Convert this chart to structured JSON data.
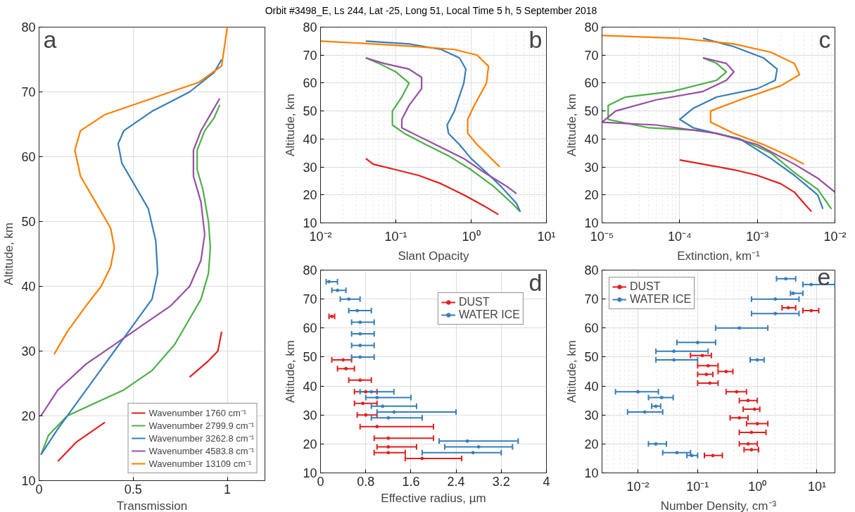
{
  "chart_data": [
    {
      "type": "line",
      "xlabel": "Transmission",
      "ylabel": "Altitude, km",
      "annotations": [
        "a"
      ],
      "xlim": [
        0,
        1.2
      ],
      "ylim": [
        10,
        80
      ],
      "xticks": [
        0,
        0.5,
        1
      ],
      "yticks": [
        10,
        20,
        30,
        40,
        50,
        60,
        70,
        80
      ],
      "grid": true,
      "legend": "bottom right",
      "marker": "none",
      "line_style": "solid",
      "series": [
        {
          "name": "Wavenumber 1760 cm⁻¹",
          "color": "#e02020",
          "x": [
            0.1,
            0.2,
            0.35,
            0.5,
            0.65,
            0.8,
            0.9,
            0.95,
            0.97
          ],
          "values": [
            13,
            16,
            19,
            null,
            null,
            26,
            28.5,
            30,
            33
          ]
        },
        {
          "name": "Wavenumber 2799.9 cm⁻¹",
          "color": "#4daf4a",
          "x": [
            0.01,
            0.05,
            0.15,
            0.3,
            0.45,
            0.6,
            0.72,
            0.8,
            0.86,
            0.9,
            0.91,
            0.9,
            0.87,
            0.84,
            0.84,
            0.88,
            0.93,
            0.96
          ],
          "values": [
            14,
            17,
            20,
            22,
            24,
            27,
            31,
            35,
            38,
            42,
            46,
            50,
            55,
            58,
            61,
            64,
            66,
            68
          ]
        },
        {
          "name": "Wavenumber 3262.8 cm⁻¹",
          "color": "#377eb8",
          "x": [
            0.01,
            0.1,
            0.2,
            0.3,
            0.4,
            0.5,
            0.6,
            0.63,
            0.62,
            0.58,
            0.5,
            0.44,
            0.42,
            0.45,
            0.6,
            0.8,
            0.93,
            0.97
          ],
          "values": [
            14,
            18,
            22,
            26,
            30,
            34,
            38,
            42,
            47,
            52,
            56,
            59,
            62,
            64,
            67,
            70,
            73,
            75
          ]
        },
        {
          "name": "Wavenumber 4583.8 cm⁻¹",
          "color": "#984ea3",
          "x": [
            0.01,
            0.1,
            0.25,
            0.4,
            0.55,
            0.7,
            0.8,
            0.86,
            0.88,
            0.86,
            0.82,
            0.82,
            0.86,
            0.92,
            0.96
          ],
          "values": [
            20,
            24,
            28,
            31,
            34,
            37,
            40,
            44,
            48,
            53,
            57,
            61,
            64,
            67,
            69
          ]
        },
        {
          "name": "Wavenumber 13109 cm⁻¹",
          "color": "#ff7f00",
          "x": [
            0.08,
            0.15,
            0.25,
            0.33,
            0.38,
            0.4,
            0.38,
            0.3,
            0.22,
            0.19,
            0.22,
            0.35,
            0.6,
            0.85,
            0.97,
            1.0
          ],
          "values": [
            29.5,
            33,
            37,
            40,
            43,
            46,
            49,
            53,
            57,
            61,
            64,
            66.5,
            69,
            71.5,
            74,
            80
          ]
        }
      ]
    },
    {
      "type": "line",
      "title": "Orbit #3498_E, Ls 244, Lat -25, Long 51, Local Time 5 h, 5 September 2018",
      "xlabel": "Slant Opacity",
      "ylabel": "Altitude, km",
      "annotations": [
        "b"
      ],
      "log": "x",
      "xlim": [
        0.01,
        10
      ],
      "ylim": [
        10,
        80
      ],
      "xticks": [
        {
          "value": 0.01,
          "label": "10⁻²"
        },
        {
          "value": 0.1,
          "label": "10⁻¹"
        },
        {
          "value": 1,
          "label": "10⁰"
        },
        {
          "value": 10,
          "label": "10¹"
        }
      ],
      "yticks": [
        10,
        20,
        30,
        40,
        50,
        60,
        70,
        80
      ],
      "grid": true,
      "marker": "none",
      "line_style": "solid",
      "series": [
        {
          "color": "#e02020",
          "x": [
            0.04,
            0.05,
            0.1,
            0.2,
            0.4,
            0.8,
            1.5,
            2.3
          ],
          "values": [
            33,
            31,
            29,
            27,
            24,
            20,
            16,
            13
          ]
        },
        {
          "color": "#4daf4a",
          "x": [
            0.04,
            0.06,
            0.1,
            0.15,
            0.12,
            0.09,
            0.09,
            0.13,
            0.25,
            0.5,
            1,
            2,
            3.5,
            4.5
          ],
          "values": [
            69,
            67,
            64,
            60,
            55,
            50,
            45,
            42,
            38,
            34,
            29,
            23,
            17,
            14
          ]
        },
        {
          "color": "#377eb8",
          "x": [
            0.04,
            0.15,
            0.4,
            0.7,
            0.85,
            0.8,
            0.6,
            0.48,
            0.5,
            0.7,
            1,
            1.6,
            2.5,
            4,
            4.5
          ],
          "values": [
            75,
            74,
            72,
            69,
            65,
            60,
            50,
            45,
            42,
            38,
            33,
            28,
            23,
            17,
            14
          ]
        },
        {
          "color": "#984ea3",
          "x": [
            0.04,
            0.07,
            0.15,
            0.22,
            0.22,
            0.15,
            0.12,
            0.12,
            0.2,
            0.4,
            0.8,
            1.5,
            3,
            4
          ],
          "values": [
            69,
            67,
            65,
            62,
            58,
            52,
            47,
            44,
            41,
            37,
            33,
            28,
            23,
            20.5
          ]
        },
        {
          "color": "#ff7f00",
          "x": [
            0.01,
            0.05,
            0.2,
            0.6,
            1.2,
            1.7,
            1.6,
            1.1,
            0.9,
            0.9,
            1.2,
            1.7,
            2.4
          ],
          "values": [
            75,
            74,
            73,
            72,
            70,
            66,
            60,
            52,
            47,
            42,
            38,
            34,
            30
          ]
        }
      ]
    },
    {
      "type": "line",
      "xlabel": "Extinction, km⁻¹",
      "ylabel": "Altitude, km",
      "annotations": [
        "c"
      ],
      "log": "x",
      "xlim": [
        1e-05,
        0.01
      ],
      "ylim": [
        10,
        80
      ],
      "xticks": [
        {
          "value": 1e-05,
          "label": "10⁻⁵"
        },
        {
          "value": 0.0001,
          "label": "10⁻⁴"
        },
        {
          "value": 0.001,
          "label": "10⁻³"
        },
        {
          "value": 0.01,
          "label": "10⁻²"
        }
      ],
      "yticks": [
        10,
        20,
        30,
        40,
        50,
        60,
        70,
        80
      ],
      "grid": true,
      "marker": "none",
      "line_style": "solid",
      "series": [
        {
          "color": "#e02020",
          "x": [
            0.0001,
            0.0002,
            0.0005,
            0.001,
            0.002,
            0.003,
            0.004,
            0.005
          ],
          "values": [
            32.5,
            31,
            29,
            27,
            24,
            21,
            17,
            14
          ]
        },
        {
          "color": "#4daf4a",
          "x": [
            0.0002,
            0.0003,
            0.0004,
            0.0003,
            8e-05,
            2e-05,
            1.2e-05,
            1.2e-05,
            4e-05,
            0.0002,
            0.0006,
            0.0015,
            0.003,
            0.006,
            0.009
          ],
          "values": [
            69,
            67,
            64,
            61,
            57,
            55,
            52,
            47,
            44,
            43,
            40,
            35,
            28,
            22,
            15
          ]
        },
        {
          "color": "#377eb8",
          "x": [
            0.0002,
            0.0005,
            0.0012,
            0.0018,
            0.0017,
            0.001,
            0.0003,
            0.00015,
            0.0001,
            0.00015,
            0.0006,
            0.0015,
            0.003,
            0.006,
            0.007
          ],
          "values": [
            76,
            73,
            69,
            65,
            61,
            58,
            55,
            51,
            47,
            44,
            40,
            33,
            27,
            20,
            15
          ]
        },
        {
          "color": "#984ea3",
          "x": [
            0.0002,
            0.0004,
            0.0005,
            0.0004,
            0.0002,
            5e-05,
            1.5e-05,
            1e-05,
            5e-05,
            0.0003,
            0.001,
            0.003,
            0.006,
            0.01
          ],
          "values": [
            69,
            67,
            64,
            61,
            57,
            54,
            50,
            46,
            45,
            42,
            38,
            31,
            26,
            21
          ]
        },
        {
          "color": "#ff7f00",
          "x": [
            1e-05,
            0.0001,
            0.0005,
            0.0015,
            0.003,
            0.0035,
            0.002,
            0.0006,
            0.00025,
            0.00025,
            0.0005,
            0.0012,
            0.0025,
            0.004
          ],
          "values": [
            77,
            76,
            74,
            71,
            67,
            63,
            59,
            54,
            50,
            46,
            42,
            38,
            34,
            31
          ]
        }
      ]
    },
    {
      "type": "scatter",
      "xlabel": "Effective radius, µm",
      "ylabel": "Altitude, km",
      "annotations": [
        "d"
      ],
      "xlim": [
        0,
        4
      ],
      "ylim": [
        10,
        80
      ],
      "xticks": [
        0,
        0.8,
        1.6,
        2.4,
        3.2,
        4
      ],
      "yticks": [
        10,
        20,
        30,
        40,
        50,
        60,
        70,
        80
      ],
      "grid": true,
      "legend": "top right",
      "marker": "circle",
      "series": [
        {
          "name": "DUST",
          "color": "#e02020",
          "x": [
            0.2,
            0.4,
            0.45,
            0.7,
            0.8,
            0.75,
            0.8,
            1.0,
            1.2,
            1.2,
            1.2,
            1.8
          ],
          "values": [
            64,
            49,
            46,
            42,
            38,
            34,
            30,
            26,
            22,
            19,
            17,
            15
          ],
          "xerrors": [
            [
              0.15,
              0.25
            ],
            [
              0.2,
              0.55
            ],
            [
              0.3,
              0.6
            ],
            [
              0.5,
              0.9
            ],
            [
              0.6,
              1.0
            ],
            [
              0.6,
              1.0
            ],
            [
              0.65,
              1.0
            ],
            [
              0.7,
              2.0
            ],
            [
              0.95,
              2.0
            ],
            [
              1.0,
              1.7
            ],
            [
              0.95,
              1.5
            ],
            [
              1.5,
              2.5
            ]
          ]
        },
        {
          "name": "WATER ICE",
          "color": "#377eb8",
          "x": [
            0.15,
            0.3,
            0.5,
            0.65,
            0.7,
            0.7,
            0.7,
            0.7,
            0.9,
            1.0,
            1.1,
            1.3,
            1.2,
            2.6,
            2.8,
            2.7
          ],
          "values": [
            76,
            73,
            70,
            66,
            62,
            58,
            54,
            50,
            38,
            36,
            33,
            31,
            29,
            21,
            19,
            17
          ],
          "xerrors": [
            [
              0.1,
              0.3
            ],
            [
              0.2,
              0.45
            ],
            [
              0.35,
              0.7
            ],
            [
              0.5,
              0.9
            ],
            [
              0.55,
              0.95
            ],
            [
              0.55,
              0.95
            ],
            [
              0.55,
              0.95
            ],
            [
              0.55,
              0.95
            ],
            [
              0.7,
              1.3
            ],
            [
              0.8,
              1.6
            ],
            [
              0.9,
              1.7
            ],
            [
              1.0,
              2.4
            ],
            [
              0.9,
              1.8
            ],
            [
              2.1,
              3.5
            ],
            [
              2.2,
              3.4
            ],
            [
              1.8,
              3.2
            ]
          ]
        }
      ]
    },
    {
      "type": "scatter",
      "xlabel": "Number Density, cm⁻³",
      "ylabel": "Altitude, km",
      "annotations": [
        "e"
      ],
      "log": "x",
      "xlim": [
        0.0025,
        20
      ],
      "ylim": [
        10,
        80
      ],
      "xticks": [
        {
          "value": 0.01,
          "label": "10⁻²"
        },
        {
          "value": 0.1,
          "label": "10⁻¹"
        },
        {
          "value": 1,
          "label": "10⁰"
        },
        {
          "value": 10,
          "label": "10¹"
        }
      ],
      "yticks": [
        10,
        20,
        30,
        40,
        50,
        60,
        70,
        80
      ],
      "grid": true,
      "legend": "top left",
      "marker": "circle",
      "series": [
        {
          "name": "DUST",
          "color": "#e02020",
          "x": [
            8,
            3.3,
            0.12,
            0.15,
            0.3,
            0.14,
            0.16,
            0.45,
            0.7,
            0.9,
            0.5,
            1,
            0.8,
            0.7,
            0.8,
            0.18
          ],
          "values": [
            66,
            67,
            50.5,
            47,
            45,
            44,
            41,
            38,
            35,
            32,
            29,
            27,
            24,
            20,
            18,
            16
          ],
          "xerrors": [
            [
              5.8,
              10.7
            ],
            [
              2.6,
              4.4
            ],
            [
              0.076,
              0.17
            ],
            [
              0.1,
              0.22
            ],
            [
              0.22,
              0.39
            ],
            [
              0.1,
              0.18
            ],
            [
              0.1,
              0.22
            ],
            [
              0.3,
              0.66
            ],
            [
              0.5,
              1
            ],
            [
              0.58,
              1.1
            ],
            [
              0.35,
              0.7
            ],
            [
              0.66,
              1.5
            ],
            [
              0.5,
              1.4
            ],
            [
              0.5,
              1
            ],
            [
              0.6,
              1.05
            ],
            [
              0.13,
              0.26
            ]
          ]
        },
        {
          "name": "WATER ICE",
          "color": "#377eb8",
          "x": [
            3,
            8,
            4,
            2,
            2,
            0.5,
            0.1,
            0.04,
            0.04,
            1,
            0.01,
            0.025,
            0.02,
            0.013,
            0.02,
            0.045,
            0.08
          ],
          "values": [
            77,
            75,
            72,
            70,
            65,
            60,
            55,
            52,
            49,
            49,
            38,
            36,
            33,
            31,
            20,
            17,
            16
          ],
          "xerrors": [
            [
              2.1,
              4.4
            ],
            [
              5.8,
              20
            ],
            [
              3.6,
              5.8
            ],
            [
              0.8,
              5
            ],
            [
              0.8,
              5
            ],
            [
              0.2,
              1.5
            ],
            [
              0.045,
              0.2
            ],
            [
              0.02,
              0.15
            ],
            [
              0.02,
              0.1
            ],
            [
              0.76,
              1.3
            ],
            [
              0.0042,
              0.022
            ],
            [
              0.015,
              0.039
            ],
            [
              0.017,
              0.024
            ],
            [
              0.0067,
              0.026
            ],
            [
              0.015,
              0.03
            ],
            [
              0.026,
              0.076
            ],
            [
              0.066,
              0.1
            ]
          ]
        }
      ]
    }
  ]
}
